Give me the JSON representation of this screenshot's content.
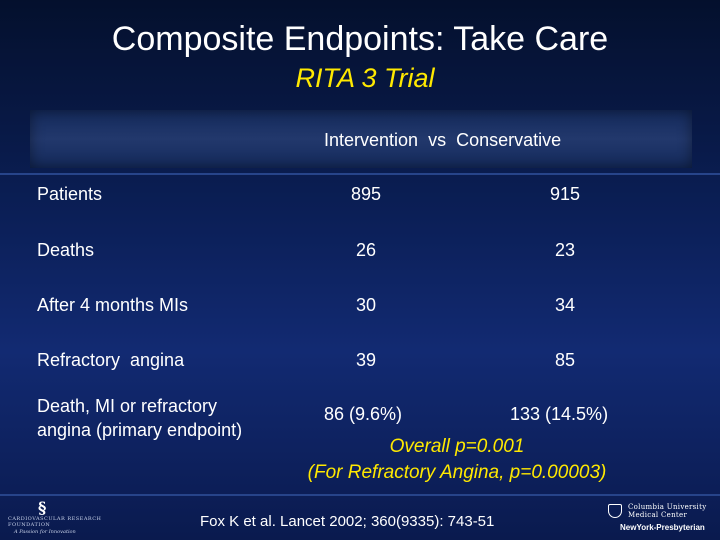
{
  "slide": {
    "title": "Composite Endpoints: Take Care",
    "subtitle": "RITA 3 Trial",
    "header": "Intervention  vs  Conservative"
  },
  "table": {
    "rows": [
      {
        "label": "Patients",
        "intervention": "895",
        "conservative": "915"
      },
      {
        "label": "Deaths",
        "intervention": "26",
        "conservative": "23"
      },
      {
        "label": "After 4 months MIs",
        "intervention": "30",
        "conservative": "34"
      },
      {
        "label": "Refractory  angina",
        "intervention": "39",
        "conservative": "85"
      }
    ],
    "primary": {
      "label_line1": "Death, MI or refractory",
      "label_line2": "angina (primary endpoint)",
      "intervention": "86 (9.6%)",
      "conservative": "133 (14.5%)"
    }
  },
  "stats": {
    "overall": "Overall p=0.001",
    "refractory": "(For Refractory Angina, p=0.00003)"
  },
  "reference": "Fox K et al. Lancet 2002; 360(9335): 743-51",
  "logos": {
    "left_line1": "CARDIOVASCULAR RESEARCH",
    "left_line2": "FOUNDATION",
    "left_line3": "A Passion for Innovation",
    "right_line1": "Columbia University",
    "right_line2": "Medical Center",
    "right_line3": "NewYork-Presbyterian"
  },
  "colors": {
    "accent": "#ffe900",
    "background": "#0b1f57"
  }
}
